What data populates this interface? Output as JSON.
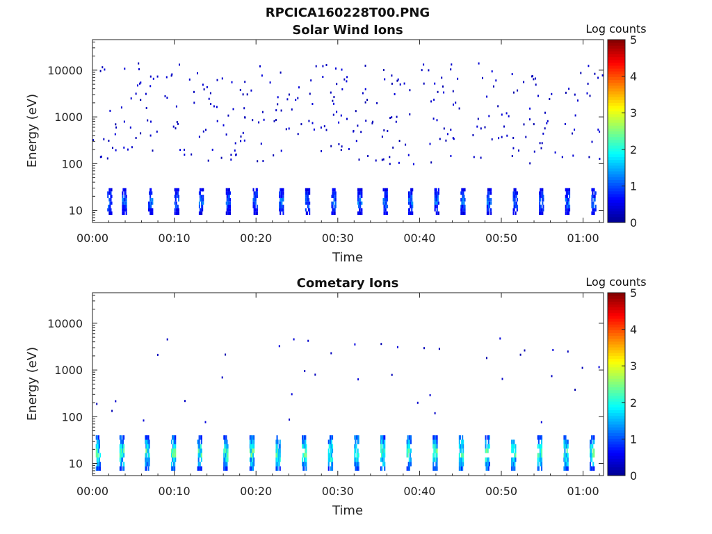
{
  "figure_title": "RPCICA160228T00.PNG",
  "colors": {
    "jet": [
      "#00008f",
      "#0000ff",
      "#0080ff",
      "#00ffff",
      "#80ff80",
      "#ffff00",
      "#ff8000",
      "#ff0000",
      "#800000"
    ],
    "axis": "#222222",
    "background": "#ffffff"
  },
  "chart_data": [
    {
      "type": "heatmap",
      "title": "Solar Wind Ions",
      "xlabel": "Time",
      "ylabel": "Energy (eV)",
      "x_tick_labels": [
        "00:00",
        "00:10",
        "00:20",
        "00:30",
        "00:40",
        "00:50",
        "01:00"
      ],
      "x_tick_minutes": [
        0,
        10,
        20,
        30,
        40,
        50,
        60
      ],
      "xlim_minutes": [
        0,
        62.5
      ],
      "y_scale": "log",
      "ylim": [
        5.5,
        45000
      ],
      "y_tick_labels": [
        "10",
        "100",
        "1000",
        "10000"
      ],
      "y_tick_values": [
        10,
        100,
        1000,
        10000
      ],
      "colorbar": {
        "label": "Log counts",
        "ticks": [
          "0",
          "1",
          "2",
          "3",
          "4",
          "5"
        ],
        "range": [
          0,
          5
        ],
        "colormap": "jet"
      },
      "pattern": {
        "sweep_start_minutes": [
          1.8,
          3.6,
          6.8,
          10.0,
          13.0,
          16.3,
          19.6,
          22.8,
          26.0,
          29.2,
          32.4,
          35.5,
          38.6,
          41.8,
          45.0,
          48.2,
          51.4,
          54.6,
          57.8,
          61.0
        ],
        "low_energy_band_eV": [
          8,
          30
        ],
        "low_energy_log_counts_max": 1.5,
        "scattered_high_energy_eV": [
          100,
          15000
        ],
        "scattered_log_counts": 0.3
      }
    },
    {
      "type": "heatmap",
      "title": "Cometary Ions",
      "xlabel": "Time",
      "ylabel": "Energy (eV)",
      "x_tick_labels": [
        "00:00",
        "00:10",
        "00:20",
        "00:30",
        "00:40",
        "00:50",
        "01:00"
      ],
      "x_tick_minutes": [
        0,
        10,
        20,
        30,
        40,
        50,
        60
      ],
      "xlim_minutes": [
        0,
        62.5
      ],
      "y_scale": "log",
      "ylim": [
        5.5,
        45000
      ],
      "y_tick_labels": [
        "10",
        "100",
        "1000",
        "10000"
      ],
      "y_tick_values": [
        10,
        100,
        1000,
        10000
      ],
      "colorbar": {
        "label": "Log counts",
        "ticks": [
          "0",
          "1",
          "2",
          "3",
          "4",
          "5"
        ],
        "range": [
          0,
          5
        ],
        "colormap": "jet"
      },
      "pattern": {
        "sweep_start_minutes": [
          0.4,
          3.3,
          6.4,
          9.6,
          12.8,
          16.0,
          19.2,
          22.4,
          25.6,
          28.8,
          32.0,
          35.2,
          38.4,
          41.6,
          44.8,
          48.0,
          51.2,
          54.4,
          57.6,
          60.8
        ],
        "low_energy_band_eV": [
          7,
          40
        ],
        "low_energy_log_counts_max": 2.8,
        "scattered_high_energy_eV": [
          80,
          6000
        ],
        "scattered_log_counts": 0.3
      }
    }
  ]
}
